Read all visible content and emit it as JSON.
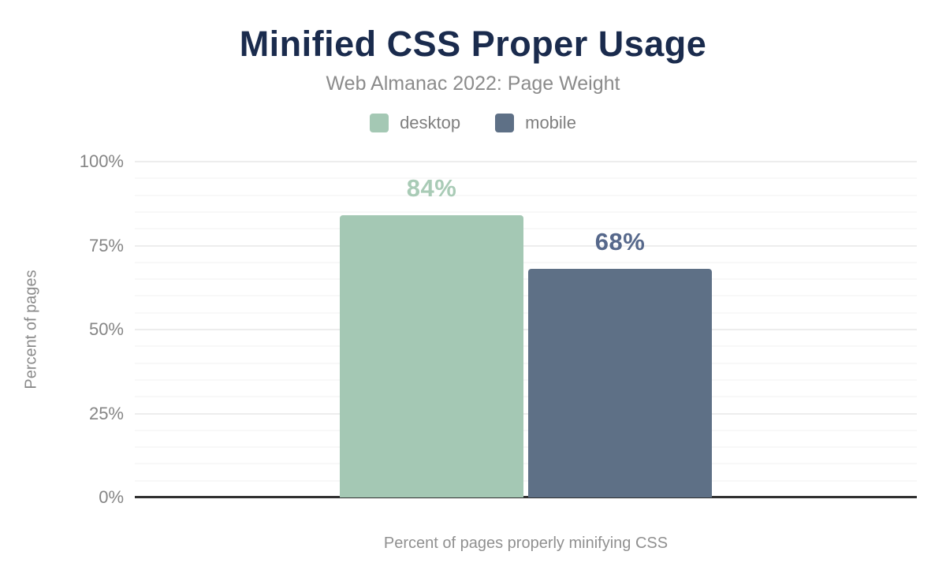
{
  "chart": {
    "title": "Minified CSS Proper Usage",
    "subtitle": "Web Almanac 2022: Page Weight"
  },
  "chart_data": {
    "type": "bar",
    "title": "Minified CSS Proper Usage",
    "subtitle": "Web Almanac 2022: Page Weight",
    "categories": [
      "Percent of pages properly minifying CSS"
    ],
    "series": [
      {
        "name": "desktop",
        "values": [
          84
        ],
        "data_label": "84%",
        "color": "#a4c8b4",
        "label_color": "#a9cbb6"
      },
      {
        "name": "mobile",
        "values": [
          68
        ],
        "data_label": "68%",
        "color": "#5e7086",
        "label_color": "#56688b"
      }
    ],
    "xlabel": "Percent of pages properly minifying CSS",
    "ylabel": "Percent of pages",
    "ylim": [
      0,
      100
    ],
    "y_ticks": [
      {
        "value": 0,
        "label": "0%"
      },
      {
        "value": 25,
        "label": "25%"
      },
      {
        "value": 50,
        "label": "50%"
      },
      {
        "value": 75,
        "label": "75%"
      },
      {
        "value": 100,
        "label": "100%"
      }
    ],
    "grid": {
      "minor_step": 5,
      "major_step": 25,
      "minor_color": "#f8f8f8",
      "major_color": "#ededed"
    },
    "legend_position": "top"
  },
  "colors": {
    "title_navy": "#1a2b4d",
    "subtitle_gray": "#8b8b8b",
    "tick_gray": "#858585",
    "legend_gray": "#7f7f7f",
    "axis_line": "#303030",
    "background": "#ffffff"
  }
}
